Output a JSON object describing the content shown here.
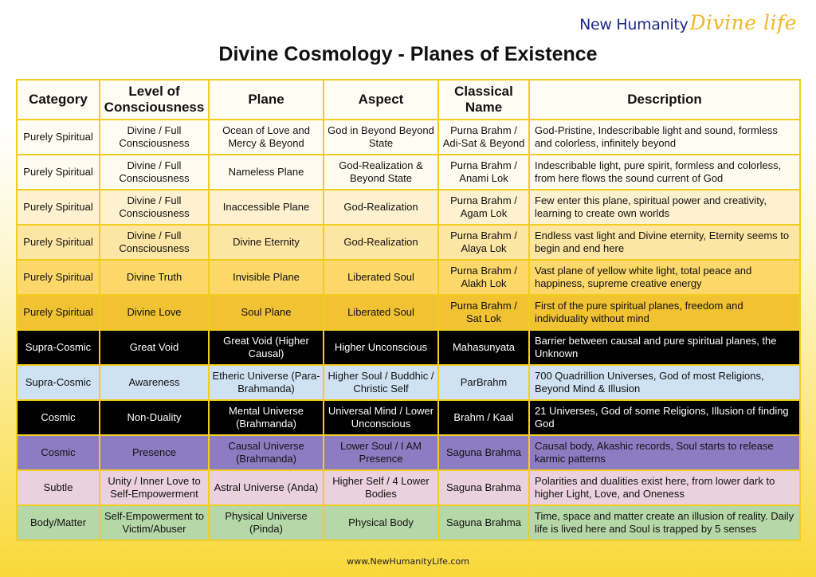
{
  "brand": {
    "main": "New Humanity",
    "script": "Divine life"
  },
  "title": "Divine Cosmology - Planes of Existence",
  "table": {
    "headers": [
      "Category",
      "Level of Consciousness",
      "Plane",
      "Aspect",
      "Classical Name",
      "Description"
    ],
    "rows": [
      {
        "category": "Purely Spiritual",
        "level": "Divine / Full Consciousness",
        "plane": "Ocean of Love and Mercy & Beyond",
        "aspect": "God in Beyond Beyond State",
        "classical": "Purna Brahm / Adi-Sat & Beyond",
        "description": "God-Pristine, Indescribable light and sound, formless and colorless, infinitely beyond",
        "bg": "#fffdf3",
        "fg": "#111111"
      },
      {
        "category": "Purely Spiritual",
        "level": "Divine / Full Consciousness",
        "plane": "Nameless Plane",
        "aspect": "God-Realization & Beyond State",
        "classical": "Purna Brahm / Anami Lok",
        "description": "Indescribable light, pure spirit, formless and colorless, from here flows the sound current of God",
        "bg": "#fffbee",
        "fg": "#111111"
      },
      {
        "category": "Purely Spiritual",
        "level": "Divine / Full Consciousness",
        "plane": "Inaccessible Plane",
        "aspect": "God-Realization",
        "classical": "Purna Brahm / Agam Lok",
        "description": "Few enter this plane, spiritual power and creativity, learning to create own worlds",
        "bg": "#fef1cf",
        "fg": "#111111"
      },
      {
        "category": "Purely Spiritual",
        "level": "Divine / Full Consciousness",
        "plane": "Divine Eternity",
        "aspect": "God-Realization",
        "classical": "Purna Brahm / Alaya Lok",
        "description": "Endless vast light and Divine eternity, Eternity seems to begin and end here",
        "bg": "#fde5a3",
        "fg": "#111111"
      },
      {
        "category": "Purely Spiritual",
        "level": "Divine Truth",
        "plane": "Invisible Plane",
        "aspect": "Liberated Soul",
        "classical": "Purna Brahm / Alakh Lok",
        "description": "Vast plane of yellow white light, total peace and happiness, supreme creative energy",
        "bg": "#fcd76a",
        "fg": "#111111"
      },
      {
        "category": "Purely Spiritual",
        "level": "Divine Love",
        "plane": "Soul Plane",
        "aspect": "Liberated Soul",
        "classical": "Purna Brahm / Sat Lok",
        "description": "First of the pure spiritual planes, freedom and individuality without mind",
        "bg": "#f1c232",
        "fg": "#111111"
      },
      {
        "category": "Supra-Cosmic",
        "level": "Great Void",
        "plane": "Great Void (Higher Causal)",
        "aspect": "Higher Unconscious",
        "classical": "Mahasunyata",
        "description": "Barrier between causal and pure spiritual planes, the Unknown",
        "bg": "#000000",
        "fg": "#ffffff"
      },
      {
        "category": "Supra-Cosmic",
        "level": "Awareness",
        "plane": "Etheric Universe (Para-Brahmanda)",
        "aspect": "Higher Soul / Buddhic / Christic Self",
        "classical": "ParBrahm",
        "description": "700 Quadrillion Universes, God of most Religions, Beyond Mind & Illusion",
        "bg": "#cfe2f3",
        "fg": "#111111"
      },
      {
        "category": "Cosmic",
        "level": "Non-Duality",
        "plane": "Mental Universe (Brahmanda)",
        "aspect": "Universal Mind / Lower Unconscious",
        "classical": "Brahm / Kaal",
        "description": "21 Universes, God of some Religions, Illusion of finding God",
        "bg": "#000000",
        "fg": "#ffffff"
      },
      {
        "category": "Cosmic",
        "level": "Presence",
        "plane": "Causal Universe (Brahmanda)",
        "aspect": "Lower Soul / I AM Presence",
        "classical": "Saguna Brahma",
        "description": "Causal body, Akashic records, Soul starts to release karmic patterns",
        "bg": "#8e7cc3",
        "fg": "#111111"
      },
      {
        "category": "Subtle",
        "level": "Unity / Inner Love to Self-Empowerment",
        "plane": "Astral Universe (Anda)",
        "aspect": "Higher Self / 4 Lower Bodies",
        "classical": "Saguna Brahma",
        "description": "Polarities and dualities exist here, from lower dark to higher Light, Love, and Oneness",
        "bg": "#ead1dc",
        "fg": "#111111"
      },
      {
        "category": "Body/Matter",
        "level": "Self-Empowerment to Victim/Abuser",
        "plane": "Physical Universe (Pinda)",
        "aspect": "Physical Body",
        "classical": "Saguna Brahma",
        "description": "Time, space and matter create an illusion of reality. Daily life is lived here and Soul is trapped by 5 senses",
        "bg": "#b6d7a8",
        "fg": "#111111"
      }
    ]
  },
  "footer": {
    "url": "www.NewHumanityLife.com"
  },
  "colors": {
    "border": "#f2cd1e",
    "brand_blue": "#1f2a8a",
    "brand_gold": "#f0b726"
  }
}
